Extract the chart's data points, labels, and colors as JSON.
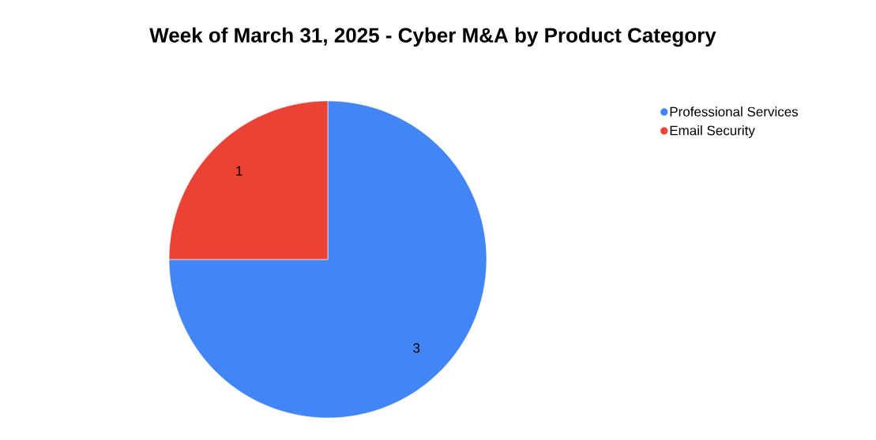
{
  "chart_data": {
    "type": "pie",
    "title": "Week of March 31, 2025 - Cyber M&A by Product Category",
    "categories": [
      "Professional Services",
      "Email Security"
    ],
    "values": [
      3,
      1
    ],
    "colors": [
      "#4285f4",
      "#ea4335"
    ],
    "data_labels": true,
    "legend": "top right"
  }
}
